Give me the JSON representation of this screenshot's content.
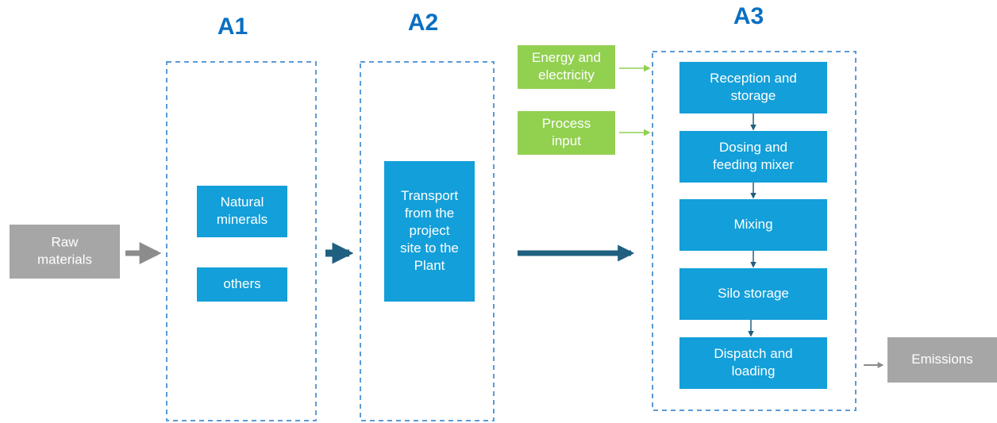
{
  "raw_materials": [
    "Raw",
    "materials"
  ],
  "emissions": [
    "Emissions"
  ],
  "stages": [
    {
      "label": "A1",
      "boxes": [
        [
          "Natural",
          "minerals"
        ],
        [
          "others"
        ]
      ]
    },
    {
      "label": "A2",
      "boxes": [
        [
          "Transport",
          "from the",
          "project",
          "site to the",
          "Plant"
        ]
      ]
    },
    {
      "label": "A3",
      "boxes": [
        [
          "Reception and",
          "storage"
        ],
        [
          "Dosing and",
          "feeding mixer"
        ],
        [
          "Mixing"
        ],
        [
          "Silo storage"
        ],
        [
          "Dispatch and",
          "loading"
        ]
      ]
    }
  ],
  "inputs": [
    [
      "Energy and",
      "electricity"
    ],
    [
      "Process",
      "input"
    ]
  ]
}
